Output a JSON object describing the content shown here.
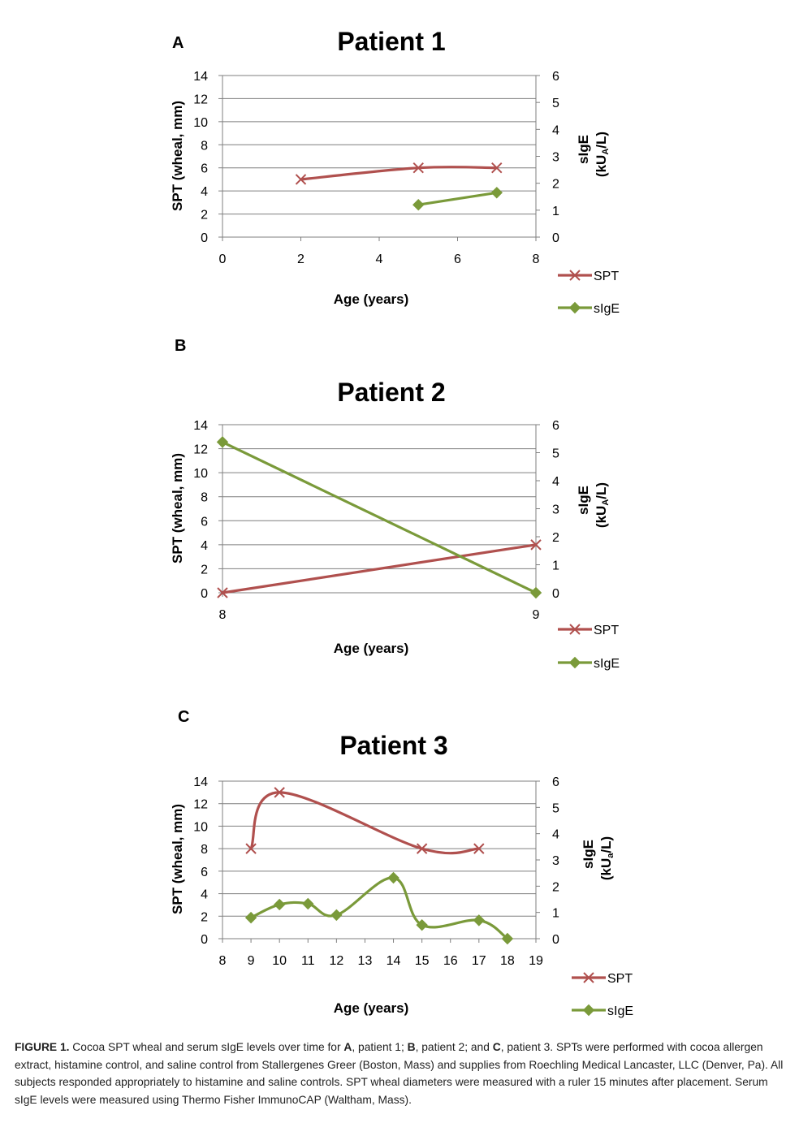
{
  "colors": {
    "spt": "#b0504e",
    "sige": "#7a9a3a",
    "grid": "#7f7f7f",
    "axis": "#7f7f7f"
  },
  "panels": [
    {
      "letter": "A",
      "ylabel_left": "SPT (wheal, mm)",
      "ylabel_right": "sIgE",
      "ylabel_right_units": {
        "pre": "(kU",
        "sub": "A",
        "post": "/L)"
      },
      "legend": {
        "spt": "SPT",
        "sige": "sIgE"
      }
    },
    {
      "letter": "B",
      "ylabel_left": "SPT (wheal, mm)",
      "ylabel_right": "sIgE",
      "ylabel_right_units": {
        "pre": "(kU",
        "sub": "A",
        "post": "/L)"
      },
      "legend": {
        "spt": "SPT",
        "sige": "sIgE"
      }
    },
    {
      "letter": "C",
      "ylabel_left": "SPT (wheal, mm)",
      "ylabel_right": "sIgE",
      "ylabel_right_units": {
        "pre": "(kU",
        "sub": "a",
        "post": "/L)"
      },
      "legend": {
        "spt": "SPT",
        "sige": "sIgE"
      }
    }
  ],
  "chart_data": [
    {
      "type": "line",
      "title": "Patient 1",
      "xlabel": "Age (years)",
      "ylabel": "SPT (wheal, mm)",
      "y2label": "sIgE (kUA/L)",
      "xlim": [
        0,
        8
      ],
      "xticks": [
        0,
        2,
        4,
        6,
        8
      ],
      "ylim": [
        0,
        14
      ],
      "yticks": [
        0,
        2,
        4,
        6,
        8,
        10,
        12,
        14
      ],
      "y2lim": [
        0,
        6
      ],
      "y2ticks": [
        0,
        1,
        2,
        3,
        4,
        5,
        6
      ],
      "series": [
        {
          "name": "SPT",
          "axis": "left",
          "marker": "x",
          "x": [
            2,
            5,
            7
          ],
          "y": [
            5,
            6,
            6
          ]
        },
        {
          "name": "sIgE",
          "axis": "right",
          "marker": "diamond",
          "x": [
            5,
            7
          ],
          "y": [
            1.2,
            1.65
          ]
        }
      ]
    },
    {
      "type": "line",
      "title": "Patient 2",
      "xlabel": "Age (years)",
      "ylabel": "SPT (wheal, mm)",
      "y2label": "sIgE (kUA/L)",
      "xlim": [
        8,
        9
      ],
      "xticks": [
        8,
        9
      ],
      "ylim": [
        0,
        14
      ],
      "yticks": [
        0,
        2,
        4,
        6,
        8,
        10,
        12,
        14
      ],
      "y2lim": [
        0,
        6
      ],
      "y2ticks": [
        0,
        1,
        2,
        3,
        4,
        5,
        6
      ],
      "series": [
        {
          "name": "SPT",
          "axis": "left",
          "marker": "x",
          "x": [
            8,
            9
          ],
          "y": [
            0,
            4
          ]
        },
        {
          "name": "sIgE",
          "axis": "right",
          "marker": "diamond",
          "x": [
            8,
            9
          ],
          "y": [
            5.38,
            0
          ]
        }
      ]
    },
    {
      "type": "line",
      "title": "Patient 3",
      "xlabel": "Age (years)",
      "ylabel": "SPT (wheal, mm)",
      "y2label": "sIgE (kUa/L)",
      "xlim": [
        8,
        19
      ],
      "xticks": [
        8,
        9,
        10,
        11,
        12,
        13,
        14,
        15,
        16,
        17,
        18,
        19
      ],
      "ylim": [
        0,
        14
      ],
      "yticks": [
        0,
        2,
        4,
        6,
        8,
        10,
        12,
        14
      ],
      "y2lim": [
        0,
        6
      ],
      "y2ticks": [
        0,
        1,
        2,
        3,
        4,
        5,
        6
      ],
      "series": [
        {
          "name": "SPT",
          "axis": "left",
          "marker": "x",
          "x": [
            9,
            10,
            15,
            17
          ],
          "y": [
            8,
            13,
            8,
            8
          ]
        },
        {
          "name": "sIgE",
          "axis": "right",
          "marker": "diamond",
          "x": [
            9,
            10,
            11,
            12,
            14,
            15,
            17,
            18
          ],
          "y": [
            0.8,
            1.3,
            1.33,
            0.9,
            2.32,
            0.52,
            0.7,
            0
          ]
        }
      ]
    }
  ],
  "caption": {
    "label": "FIGURE 1.",
    "t1": " Cocoa SPT wheal and serum sIgE levels over time for ",
    "A": "A",
    "t2": ", patient 1; ",
    "B": "B",
    "t3": ", patient 2; and ",
    "C": "C",
    "t4": ", patient 3. SPTs were performed with cocoa allergen extract, histamine control, and saline control from Stallergenes Greer (Boston, Mass) and supplies from Roechling Medical Lancaster, LLC (Denver, Pa). All subjects responded appropriately to histamine and saline controls. SPT wheal diameters were measured with a ruler 15 minutes after placement. Serum sIgE levels were measured using Thermo Fisher ImmunoCAP (Waltham, Mass)."
  }
}
